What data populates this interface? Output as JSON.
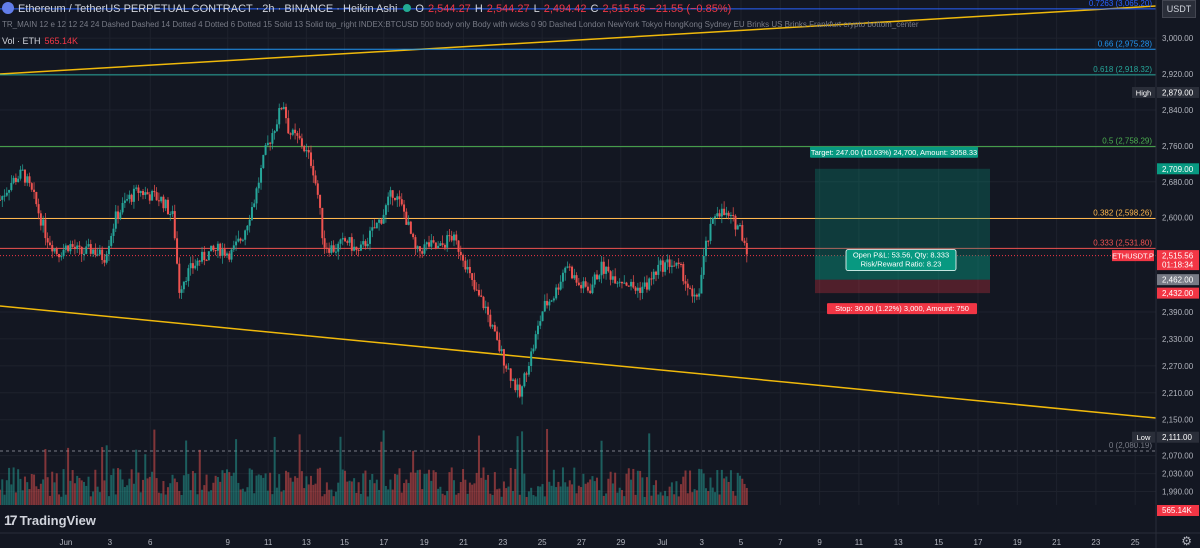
{
  "header": {
    "symbol_icon": "ethereum-icon",
    "title": "Ethereum / TetherUS PERPETUAL CONTRACT · 2h · BINANCE · Heikin Ashi",
    "ohlc": [
      {
        "label": "O",
        "value": "2,544.27"
      },
      {
        "label": "H",
        "value": "2,544.27"
      },
      {
        "label": "L",
        "value": "2,494.42"
      },
      {
        "label": "C",
        "value": "2,515.56"
      }
    ],
    "change": "−21.55 (−0.85%)",
    "indicator_line": "TR_MAIN 12 e 12 12 24 24 Dashed Dashed 14 Dotted 4 Dotted 6 Dotted 15 Solid 13 Solid top_right INDEX:BTCUSD 500 body only Body with wicks 0 90 Dashed London NewYork Tokyo HongKong Sydney EU Brinks US Brinks Frankfurt crypto bottom_center",
    "volume_label": "Vol · ETH",
    "volume_value": "565.14K",
    "currency": "USDT",
    "logo": "TradingView",
    "settings_icon": "gear-icon"
  },
  "chart_data": {
    "type": "candlestick",
    "ylim": [
      1960,
      3085
    ],
    "price_ticks": [
      3000,
      2920,
      2840,
      2760,
      2680,
      2600,
      2390,
      2330,
      2270,
      2210,
      2150,
      2070,
      2030,
      1990
    ],
    "price_tick_labels": [
      "3,000.00",
      "2,920.00",
      "2,840.00",
      "2,760.00",
      "2,680.00",
      "2,600.00",
      "2,390.00",
      "2,330.00",
      "2,270.00",
      "2,210.00",
      "2,150.00",
      "2,070.00",
      "2,030.00",
      "1,990.00"
    ],
    "x_ticks": [
      {
        "label": "Jun",
        "x": 0.057
      },
      {
        "label": "3",
        "x": 0.095
      },
      {
        "label": "6",
        "x": 0.13
      },
      {
        "label": "9",
        "x": 0.197
      },
      {
        "label": "11",
        "x": 0.232
      },
      {
        "label": "13",
        "x": 0.265
      },
      {
        "label": "15",
        "x": 0.298
      },
      {
        "label": "17",
        "x": 0.332
      },
      {
        "label": "19",
        "x": 0.367
      },
      {
        "label": "21",
        "x": 0.401
      },
      {
        "label": "23",
        "x": 0.435
      },
      {
        "label": "25",
        "x": 0.469
      },
      {
        "label": "27",
        "x": 0.503
      },
      {
        "label": "29",
        "x": 0.537
      },
      {
        "label": "Jul",
        "x": 0.573
      },
      {
        "label": "3",
        "x": 0.607
      },
      {
        "label": "5",
        "x": 0.641
      },
      {
        "label": "7",
        "x": 0.675
      },
      {
        "label": "9",
        "x": 0.709
      },
      {
        "label": "11",
        "x": 0.743
      },
      {
        "label": "13",
        "x": 0.777
      },
      {
        "label": "15",
        "x": 0.812
      },
      {
        "label": "17",
        "x": 0.846
      },
      {
        "label": "19",
        "x": 0.88
      },
      {
        "label": "21",
        "x": 0.914
      },
      {
        "label": "23",
        "x": 0.948
      },
      {
        "label": "25",
        "x": 0.982
      },
      {
        "label": "27",
        "x": 1.016
      },
      {
        "label": "29",
        "x": 1.05
      }
    ],
    "price_path": [
      [
        0.0,
        2640
      ],
      [
        0.01,
        2680
      ],
      [
        0.02,
        2700
      ],
      [
        0.03,
        2640
      ],
      [
        0.04,
        2560
      ],
      [
        0.05,
        2520
      ],
      [
        0.06,
        2540
      ],
      [
        0.07,
        2520
      ],
      [
        0.08,
        2530
      ],
      [
        0.09,
        2510
      ],
      [
        0.1,
        2600
      ],
      [
        0.11,
        2640
      ],
      [
        0.12,
        2660
      ],
      [
        0.13,
        2650
      ],
      [
        0.14,
        2640
      ],
      [
        0.15,
        2600
      ],
      [
        0.155,
        2440
      ],
      [
        0.16,
        2470
      ],
      [
        0.17,
        2500
      ],
      [
        0.18,
        2520
      ],
      [
        0.19,
        2530
      ],
      [
        0.2,
        2520
      ],
      [
        0.21,
        2560
      ],
      [
        0.22,
        2640
      ],
      [
        0.23,
        2750
      ],
      [
        0.24,
        2820
      ],
      [
        0.245,
        2860
      ],
      [
        0.25,
        2790
      ],
      [
        0.26,
        2770
      ],
      [
        0.27,
        2720
      ],
      [
        0.275,
        2650
      ],
      [
        0.28,
        2540
      ],
      [
        0.29,
        2530
      ],
      [
        0.3,
        2550
      ],
      [
        0.31,
        2520
      ],
      [
        0.32,
        2560
      ],
      [
        0.33,
        2600
      ],
      [
        0.34,
        2660
      ],
      [
        0.35,
        2610
      ],
      [
        0.36,
        2520
      ],
      [
        0.37,
        2540
      ],
      [
        0.38,
        2530
      ],
      [
        0.39,
        2560
      ],
      [
        0.4,
        2520
      ],
      [
        0.41,
        2440
      ],
      [
        0.42,
        2400
      ],
      [
        0.43,
        2320
      ],
      [
        0.44,
        2260
      ],
      [
        0.45,
        2200
      ],
      [
        0.455,
        2260
      ],
      [
        0.46,
        2300
      ],
      [
        0.47,
        2400
      ],
      [
        0.48,
        2430
      ],
      [
        0.49,
        2500
      ],
      [
        0.5,
        2450
      ],
      [
        0.51,
        2440
      ],
      [
        0.52,
        2490
      ],
      [
        0.53,
        2470
      ],
      [
        0.54,
        2460
      ],
      [
        0.55,
        2440
      ],
      [
        0.56,
        2450
      ],
      [
        0.57,
        2490
      ],
      [
        0.58,
        2500
      ],
      [
        0.59,
        2480
      ],
      [
        0.6,
        2410
      ],
      [
        0.605,
        2440
      ],
      [
        0.61,
        2530
      ],
      [
        0.62,
        2620
      ],
      [
        0.63,
        2600
      ],
      [
        0.64,
        2580
      ],
      [
        0.648,
        2515
      ]
    ],
    "horizontal_levels": [
      {
        "label": "0.7263 (3,065.20)",
        "value": 3065.2,
        "color": "#2962ff"
      },
      {
        "label": "0.66 (2,975.28)",
        "value": 2975.28,
        "color": "#2196f3"
      },
      {
        "label": "0.618 (2,918.32)",
        "value": 2918.32,
        "color": "#26a69a"
      },
      {
        "label": "0.5 (2,758.29)",
        "value": 2758.29,
        "color": "#4caf50"
      },
      {
        "label": "0.382 (2,598.26)",
        "value": 2598.26,
        "color": "#ffb74d"
      },
      {
        "label": "0.333 (2,531.80)",
        "value": 2531.8,
        "color": "#ef5350"
      },
      {
        "label": "0 (2,080.19)",
        "value": 2080.19,
        "color": "#787b86"
      }
    ],
    "axis_markers": [
      {
        "side": "High",
        "value": 2879.0,
        "label": "2,879.00",
        "bg": "#2a2e39"
      },
      {
        "value": 2709.0,
        "label": "2,709.00",
        "bg": "#089981"
      },
      {
        "value": 2515.63,
        "label": "2,515.63",
        "bg": "#2a2e39"
      },
      {
        "value": 2515.56,
        "label": "2,515.56",
        "bg": "#f23645",
        "countdown": "01:18:34"
      },
      {
        "value": 2462.0,
        "label": "2,462.00",
        "bg": "#787b86"
      },
      {
        "value": 2432.0,
        "label": "2,432.00",
        "bg": "#f23645"
      },
      {
        "side": "Low",
        "value": 2111.0,
        "label": "2,111.00",
        "bg": "#2a2e39"
      }
    ],
    "symbol_tag": "ETHUSDT.P",
    "volume_axis_label": "565.14K",
    "position": {
      "entry": 2462.0,
      "target": 2709.0,
      "stop": 2432.0,
      "target_label": "Target: 247.00 (10.03%) 24,700, Amount: 3058.33",
      "stop_label": "Stop: 30.00 (1.22%) 3,000, Amount: 750",
      "pnl_label": "Open P&L: 53.56, Qty: 8.333",
      "rr_label": "Risk/Reward Ratio: 8.23"
    }
  }
}
